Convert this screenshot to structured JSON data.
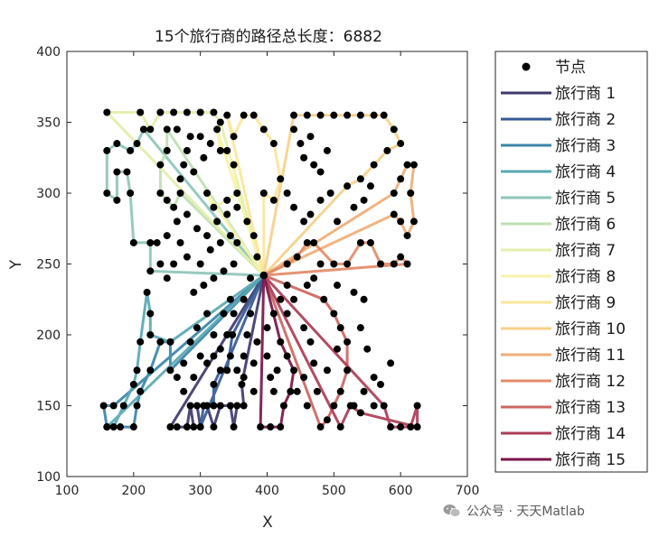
{
  "chart_data": {
    "type": "line",
    "title": "15个旅行商的路径总长度：6882",
    "xlabel": "X",
    "ylabel": "Y",
    "xlim": [
      100,
      700
    ],
    "ylim": [
      100,
      400
    ],
    "xticks": [
      100,
      200,
      300,
      400,
      500,
      600,
      700
    ],
    "yticks": [
      100,
      150,
      200,
      250,
      300,
      350,
      400
    ],
    "grid": false,
    "legend_position": "outside-right",
    "depot": [
      395,
      242
    ],
    "nodes_label": "节点",
    "series": [
      {
        "name": "旅行商 1",
        "color": "#3d3a6b",
        "points": [
          [
            395,
            242
          ],
          [
            362,
            165
          ],
          [
            365,
            150
          ],
          [
            355,
            150
          ],
          [
            350,
            135
          ],
          [
            345,
            150
          ],
          [
            330,
            150
          ],
          [
            320,
            135
          ],
          [
            310,
            150
          ],
          [
            295,
            150
          ],
          [
            300,
            135
          ],
          [
            290,
            135
          ],
          [
            285,
            150
          ],
          [
            280,
            135
          ],
          [
            265,
            135
          ],
          [
            255,
            135
          ],
          [
            395,
            242
          ]
        ]
      },
      {
        "name": "旅行商 2",
        "color": "#355a93",
        "points": [
          [
            395,
            242
          ],
          [
            348,
            200
          ],
          [
            340,
            175
          ],
          [
            330,
            175
          ],
          [
            320,
            165
          ],
          [
            320,
            150
          ],
          [
            305,
            150
          ],
          [
            300,
            135
          ],
          [
            395,
            242
          ]
        ]
      },
      {
        "name": "旅行商 3",
        "color": "#3a86a8",
        "points": [
          [
            395,
            242
          ],
          [
            255,
            175
          ],
          [
            255,
            195
          ],
          [
            240,
            195
          ],
          [
            225,
            175
          ],
          [
            210,
            160
          ],
          [
            205,
            150
          ],
          [
            200,
            135
          ],
          [
            180,
            135
          ],
          [
            160,
            135
          ],
          [
            155,
            150
          ],
          [
            170,
            150
          ],
          [
            395,
            242
          ]
        ]
      },
      {
        "name": "旅行商 4",
        "color": "#5aa8b2",
        "points": [
          [
            395,
            242
          ],
          [
            255,
            195
          ],
          [
            225,
            200
          ],
          [
            225,
            215
          ],
          [
            220,
            230
          ],
          [
            210,
            195
          ],
          [
            205,
            175
          ],
          [
            200,
            165
          ],
          [
            185,
            150
          ],
          [
            170,
            135
          ],
          [
            160,
            135
          ],
          [
            395,
            242
          ]
        ]
      },
      {
        "name": "旅行商 5",
        "color": "#8ec6b9",
        "points": [
          [
            395,
            242
          ],
          [
            225,
            245
          ],
          [
            225,
            265
          ],
          [
            200,
            265
          ],
          [
            195,
            300
          ],
          [
            190,
            315
          ],
          [
            175,
            315
          ],
          [
            175,
            295
          ],
          [
            160,
            300
          ],
          [
            160,
            330
          ],
          [
            175,
            335
          ],
          [
            195,
            330
          ],
          [
            205,
            335
          ],
          [
            215,
            345
          ],
          [
            395,
            242
          ]
        ]
      },
      {
        "name": "旅行商 6",
        "color": "#bfe0b4",
        "points": [
          [
            395,
            242
          ],
          [
            250,
            345
          ],
          [
            250,
            330
          ],
          [
            240,
            320
          ],
          [
            240,
            300
          ],
          [
            250,
            295
          ],
          [
            260,
            290
          ],
          [
            270,
            300
          ],
          [
            395,
            242
          ]
        ]
      },
      {
        "name": "旅行商 7",
        "color": "#e2efab",
        "points": [
          [
            395,
            242
          ],
          [
            160,
            357
          ],
          [
            210,
            357
          ],
          [
            225,
            345
          ],
          [
            240,
            357
          ],
          [
            260,
            357
          ],
          [
            280,
            357
          ],
          [
            300,
            357
          ],
          [
            320,
            357
          ],
          [
            330,
            350
          ],
          [
            395,
            242
          ]
        ]
      },
      {
        "name": "旅行商 8",
        "color": "#f6f3aa",
        "points": [
          [
            395,
            242
          ],
          [
            325,
            345
          ],
          [
            330,
            330
          ],
          [
            340,
            330
          ],
          [
            350,
            320
          ],
          [
            355,
            300
          ],
          [
            340,
            295
          ],
          [
            320,
            290
          ],
          [
            310,
            300
          ],
          [
            395,
            242
          ]
        ]
      },
      {
        "name": "旅行商 9",
        "color": "#fbe59a",
        "points": [
          [
            395,
            242
          ],
          [
            340,
            355
          ],
          [
            350,
            340
          ],
          [
            365,
            355
          ],
          [
            380,
            355
          ],
          [
            395,
            345
          ],
          [
            410,
            335
          ],
          [
            420,
            310
          ],
          [
            410,
            295
          ],
          [
            395,
            300
          ],
          [
            395,
            242
          ]
        ]
      },
      {
        "name": "旅行商 10",
        "color": "#f6cf8a",
        "points": [
          [
            395,
            242
          ],
          [
            440,
            355
          ],
          [
            460,
            355
          ],
          [
            480,
            355
          ],
          [
            500,
            355
          ],
          [
            520,
            355
          ],
          [
            540,
            355
          ],
          [
            560,
            355
          ],
          [
            575,
            355
          ],
          [
            590,
            345
          ],
          [
            600,
            335
          ],
          [
            580,
            330
          ],
          [
            560,
            320
          ],
          [
            540,
            310
          ],
          [
            520,
            305
          ],
          [
            395,
            242
          ]
        ]
      },
      {
        "name": "旅行商 11",
        "color": "#efae77",
        "points": [
          [
            395,
            242
          ],
          [
            590,
            300
          ],
          [
            600,
            310
          ],
          [
            610,
            320
          ],
          [
            620,
            320
          ],
          [
            615,
            300
          ],
          [
            620,
            280
          ],
          [
            610,
            270
          ],
          [
            600,
            280
          ],
          [
            590,
            285
          ],
          [
            395,
            242
          ]
        ]
      },
      {
        "name": "旅行商 12",
        "color": "#e38a68",
        "points": [
          [
            395,
            242
          ],
          [
            430,
            250
          ],
          [
            445,
            255
          ],
          [
            460,
            265
          ],
          [
            470,
            265
          ],
          [
            500,
            250
          ],
          [
            520,
            250
          ],
          [
            540,
            265
          ],
          [
            555,
            265
          ],
          [
            570,
            250
          ],
          [
            590,
            250
          ],
          [
            600,
            255
          ],
          [
            610,
            250
          ],
          [
            395,
            242
          ]
        ]
      },
      {
        "name": "旅行商 13",
        "color": "#cc6660",
        "points": [
          [
            395,
            242
          ],
          [
            485,
            225
          ],
          [
            500,
            215
          ],
          [
            510,
            205
          ],
          [
            520,
            195
          ],
          [
            520,
            175
          ],
          [
            510,
            160
          ],
          [
            500,
            150
          ],
          [
            490,
            140
          ],
          [
            480,
            135
          ],
          [
            395,
            242
          ]
        ]
      },
      {
        "name": "旅行商 14",
        "color": "#ab3d57",
        "points": [
          [
            395,
            242
          ],
          [
            575,
            150
          ],
          [
            585,
            135
          ],
          [
            600,
            135
          ],
          [
            615,
            135
          ],
          [
            625,
            150
          ],
          [
            625,
            135
          ],
          [
            540,
            145
          ],
          [
            525,
            150
          ],
          [
            510,
            135
          ],
          [
            395,
            242
          ]
        ]
      },
      {
        "name": "旅行商 15",
        "color": "#7a1548",
        "points": [
          [
            395,
            242
          ],
          [
            420,
            195
          ],
          [
            430,
            185
          ],
          [
            440,
            175
          ],
          [
            435,
            160
          ],
          [
            425,
            150
          ],
          [
            420,
            135
          ],
          [
            405,
            135
          ],
          [
            390,
            135
          ],
          [
            395,
            242
          ]
        ]
      }
    ],
    "extra_nodes": [
      [
        280,
        330
      ],
      [
        285,
        340
      ],
      [
        270,
        310
      ],
      [
        290,
        315
      ],
      [
        305,
        325
      ],
      [
        315,
        335
      ],
      [
        300,
        340
      ],
      [
        265,
        345
      ],
      [
        275,
        320
      ],
      [
        440,
        345
      ],
      [
        450,
        335
      ],
      [
        455,
        325
      ],
      [
        465,
        340
      ],
      [
        470,
        320
      ],
      [
        480,
        315
      ],
      [
        490,
        330
      ],
      [
        430,
        300
      ],
      [
        440,
        290
      ],
      [
        455,
        280
      ],
      [
        465,
        285
      ],
      [
        480,
        295
      ],
      [
        495,
        300
      ],
      [
        505,
        280
      ],
      [
        530,
        290
      ],
      [
        545,
        295
      ],
      [
        555,
        305
      ],
      [
        470,
        240
      ],
      [
        480,
        250
      ],
      [
        460,
        235
      ],
      [
        505,
        235
      ],
      [
        530,
        230
      ],
      [
        545,
        225
      ],
      [
        430,
        215
      ],
      [
        440,
        225
      ],
      [
        455,
        205
      ],
      [
        465,
        195
      ],
      [
        470,
        180
      ],
      [
        455,
        170
      ],
      [
        445,
        160
      ],
      [
        460,
        150
      ],
      [
        475,
        160
      ],
      [
        490,
        175
      ],
      [
        505,
        190
      ],
      [
        540,
        205
      ],
      [
        550,
        190
      ],
      [
        560,
        170
      ],
      [
        545,
        160
      ],
      [
        530,
        150
      ],
      [
        560,
        150
      ],
      [
        570,
        165
      ],
      [
        585,
        180
      ],
      [
        365,
        185
      ],
      [
        370,
        200
      ],
      [
        375,
        215
      ],
      [
        380,
        180
      ],
      [
        380,
        160
      ],
      [
        385,
        195
      ],
      [
        400,
        185
      ],
      [
        405,
        170
      ],
      [
        410,
        160
      ],
      [
        415,
        175
      ],
      [
        400,
        205
      ],
      [
        410,
        215
      ],
      [
        420,
        225
      ],
      [
        430,
        235
      ],
      [
        320,
        200
      ],
      [
        335,
        215
      ],
      [
        345,
        225
      ],
      [
        310,
        215
      ],
      [
        295,
        205
      ],
      [
        285,
        195
      ],
      [
        275,
        180
      ],
      [
        265,
        170
      ],
      [
        275,
        160
      ],
      [
        290,
        170
      ],
      [
        300,
        185
      ],
      [
        310,
        180
      ],
      [
        290,
        230
      ],
      [
        305,
        235
      ],
      [
        320,
        240
      ],
      [
        335,
        245
      ],
      [
        350,
        250
      ],
      [
        355,
        265
      ],
      [
        345,
        270
      ],
      [
        330,
        265
      ],
      [
        315,
        260
      ],
      [
        300,
        250
      ],
      [
        280,
        255
      ],
      [
        270,
        265
      ],
      [
        260,
        250
      ],
      [
        250,
        240
      ],
      [
        240,
        250
      ],
      [
        235,
        265
      ],
      [
        250,
        270
      ],
      [
        265,
        280
      ],
      [
        280,
        285
      ],
      [
        295,
        275
      ],
      [
        310,
        270
      ],
      [
        325,
        280
      ],
      [
        340,
        285
      ],
      [
        355,
        290
      ],
      [
        370,
        280
      ],
      [
        380,
        270
      ],
      [
        385,
        255
      ],
      [
        375,
        240
      ],
      [
        365,
        225
      ],
      [
        350,
        215
      ],
      [
        340,
        200
      ],
      [
        330,
        190
      ],
      [
        355,
        175
      ],
      [
        365,
        170
      ],
      [
        345,
        185
      ],
      [
        320,
        185
      ]
    ]
  },
  "watermark": {
    "text": "公众号 · 天天Matlab",
    "icon": "wechat-icon"
  }
}
